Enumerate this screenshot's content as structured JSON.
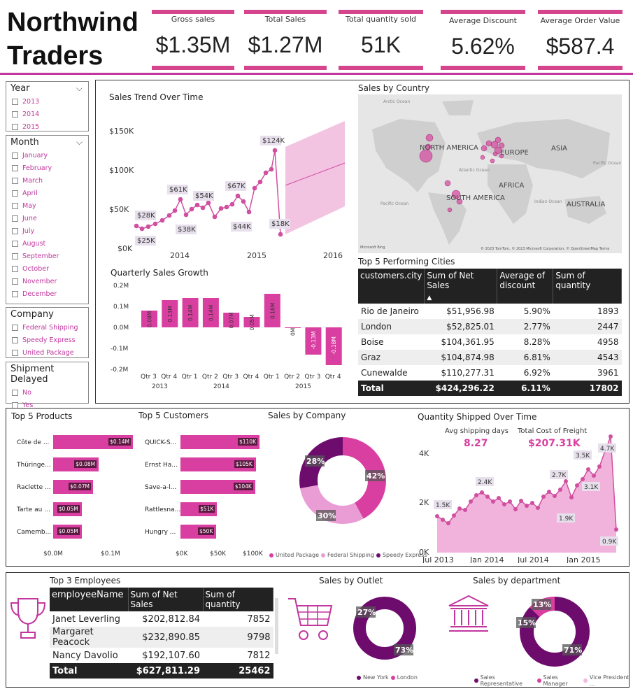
{
  "title_line1": "Northwind",
  "title_line2": "Traders",
  "kpis": [
    {
      "label": "Gross sales",
      "value": "$1.35M"
    },
    {
      "label": "Total Sales",
      "value": "$1.27M"
    },
    {
      "label": "Total quantity sold",
      "value": "51K"
    },
    {
      "label": "Average Discount",
      "value": "5.62%"
    },
    {
      "label": "Average Order Value",
      "value": "$587.4"
    }
  ],
  "slicers": {
    "year": {
      "title": "Year",
      "items": [
        "2013",
        "2014",
        "2015"
      ]
    },
    "month": {
      "title": "Month",
      "items": [
        "January",
        "February",
        "March",
        "April",
        "May",
        "June",
        "July",
        "August",
        "September",
        "October",
        "November",
        "December"
      ]
    },
    "company": {
      "title": "Company",
      "items": [
        "Federal Shipping",
        "Speedy Express",
        "United Package"
      ]
    },
    "shipment": {
      "title": "Shipment Delayed",
      "items": [
        "No",
        "Yes"
      ]
    }
  },
  "trend": {
    "title": "Sales Trend Over Time",
    "yticks": [
      "$150K",
      "$100K",
      "$50K",
      "$0K"
    ],
    "xticks": [
      "2014",
      "2015",
      "2016"
    ],
    "labels": [
      "$28K",
      "$25K",
      "$61K",
      "$38K",
      "$54K",
      "$67K",
      "$44K",
      "$124K",
      "$18K"
    ]
  },
  "country": {
    "title": "Sales by Country",
    "regions": [
      "NORTH AMERICA",
      "EUROPE",
      "ASIA",
      "AFRICA",
      "SOUTH AMERICA",
      "AUSTRALIA"
    ],
    "seas": [
      "Arctic Ocean",
      "Atlantic Ocean",
      "Pacific Ocean",
      "Indian Ocean",
      "Pacific Ocean"
    ],
    "attribution": "© 2023 TomTom, © 2023 Microsoft Corporation, © OpenStreetMap  Terms",
    "bing": "Microsoft Bing"
  },
  "quarterly": {
    "title": "Quarterly Sales Growth",
    "yticks": [
      "0.2M",
      "0.1M",
      "0.0M",
      "-0.1M",
      "-0.2M"
    ],
    "labels": [
      "0.08M",
      "0.13M",
      "0.14M",
      "0.14M",
      "0.07M",
      "0.05M",
      "0.16M",
      "0M",
      "-0.13M",
      "-0.18M"
    ],
    "quarters": [
      "Qtr 3",
      "Qtr 4",
      "Qtr 1",
      "Qtr 2",
      "Qtr 3",
      "Qtr 4",
      "Qtr 1",
      "Qtr 2",
      "Qtr 3",
      "Qtr 4"
    ],
    "years": [
      "2013",
      "2014",
      "2015"
    ]
  },
  "cities": {
    "title": "Top 5 Performing Cities",
    "headers": [
      "customers.city",
      "Sum of Net Sales",
      "Average of discount",
      "Sum of quantity"
    ],
    "rows": [
      [
        "Rio de Janeiro",
        "$51,956.98",
        "5.90%",
        "1893"
      ],
      [
        "London",
        "$52,825.01",
        "2.77%",
        "2447"
      ],
      [
        "Boise",
        "$104,361.95",
        "8.28%",
        "4958"
      ],
      [
        "Graz",
        "$104,874.98",
        "6.81%",
        "4543"
      ],
      [
        "Cunewalde",
        "$110,277.31",
        "6.92%",
        "3961"
      ]
    ],
    "total": [
      "Total",
      "$424,296.22",
      "6.11%",
      "17802"
    ]
  },
  "products": {
    "title": "Top 5 Products",
    "names": [
      "Côte de ...",
      "Thüringe...",
      "Raclette ...",
      "Tarte au ...",
      "Camemb..."
    ],
    "labels": [
      "$0.14M",
      "$0.08M",
      "$0.07M",
      "$0.05M",
      "$0.05M"
    ],
    "axis": [
      "$0.0M",
      "$0.1M"
    ]
  },
  "customers": {
    "title": "Top 5 Customers",
    "names": [
      "QUICK-S...",
      "Ernst Ha...",
      "Save-a-l...",
      "Rattlesna...",
      "Hungry ..."
    ],
    "labels": [
      "$110K",
      "$105K",
      "$104K",
      "$51K",
      "$50K"
    ],
    "axis": [
      "$0K",
      "$50K",
      "$100K"
    ]
  },
  "company": {
    "title": "Sales by Company",
    "pcts": [
      "42%",
      "30%",
      "28%"
    ],
    "legend": [
      "United Package",
      "Federal Shipping",
      "Speedy Express"
    ]
  },
  "shipped": {
    "title": "Quantity Shipped Over Time",
    "avg_label": "Avg shipping days",
    "avg_value": "8.27",
    "freight_label": "Total Cost of Freight",
    "freight_value": "$207.31K",
    "yticks": [
      "4K",
      "2K",
      "0K"
    ],
    "xticks": [
      "Jul 2013",
      "Jan 2014",
      "Jul 2014",
      "Jan 2015"
    ],
    "labels": [
      "1.5K",
      "2.4K",
      "2.7K",
      "1.9K",
      "3.5K",
      "3.1K",
      "4.7K",
      "0.9K"
    ]
  },
  "employees": {
    "title": "Top 3 Employees",
    "headers": [
      "employeeName",
      "Sum of Net Sales",
      "Sum of quantity"
    ],
    "rows": [
      [
        "Janet Leverling",
        "$202,812.84",
        "7852"
      ],
      [
        "Margaret Peacock",
        "$232,890.85",
        "9798"
      ],
      [
        "Nancy Davolio",
        "$192,107.60",
        "7812"
      ]
    ],
    "total": [
      "Total",
      "$627,811.29",
      "25462"
    ]
  },
  "outlet": {
    "title": "Sales by Outlet",
    "pcts": [
      "27%",
      "73%"
    ],
    "legend": [
      "New York",
      "London"
    ]
  },
  "department": {
    "title": "Sales by department",
    "pcts": [
      "13%",
      "15%",
      "71%"
    ],
    "legend": [
      "Sales Representative",
      "Sales Manager",
      "Vice President ..."
    ]
  },
  "colors": {
    "accent": "#d4458d",
    "purple": "#6e0c6e",
    "light": "#e89ad2",
    "dark": "#222222"
  }
}
